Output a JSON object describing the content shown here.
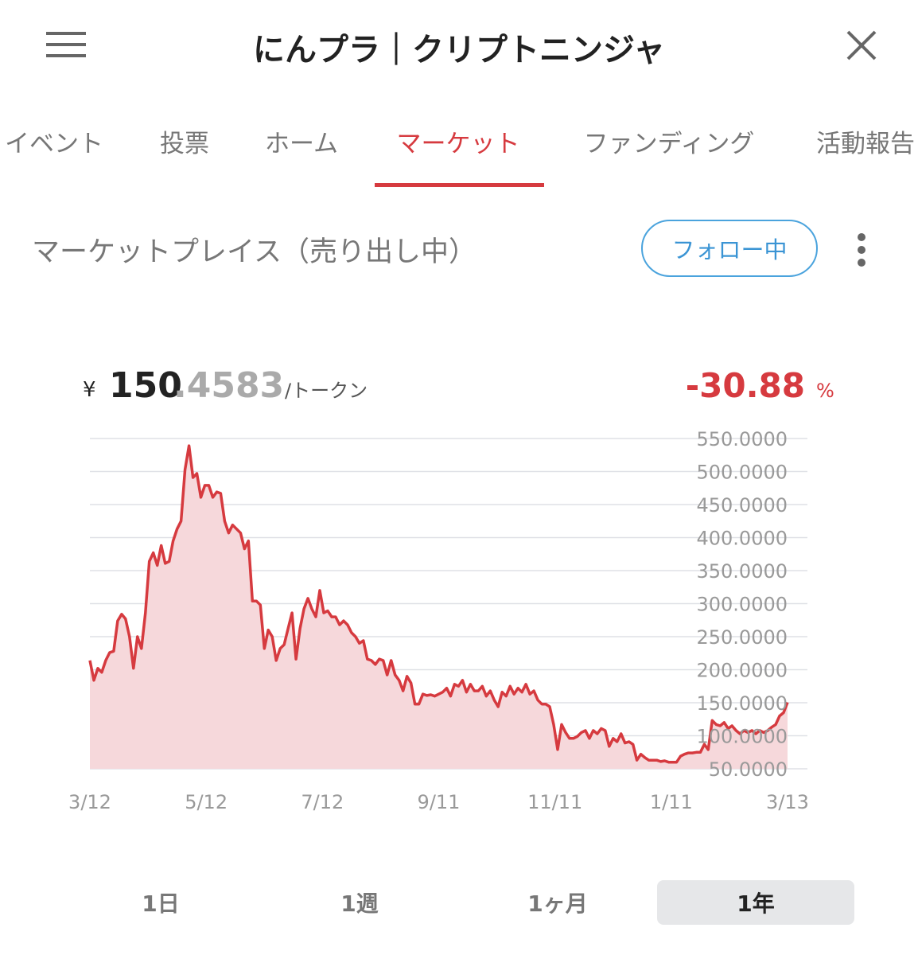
{
  "header": {
    "title": "にんプラ｜クリプトニンジャ"
  },
  "nav": {
    "items": [
      "イベント",
      "投票",
      "ホーム",
      "マーケット",
      "ファンディング",
      "活動報告"
    ],
    "active": 3
  },
  "section": {
    "title": "マーケットプレイス（売り出し中）",
    "follow_button": "フォロー中"
  },
  "price": {
    "currency": "¥",
    "integer": "150",
    "decimals": ".4583",
    "unit": "/トークン",
    "change": "-30.88",
    "change_unit": "%"
  },
  "chart_data": {
    "type": "area",
    "color": "#d63a3f",
    "fill": "#f6d8db",
    "grid": true,
    "xticks": [
      "3/12",
      "5/12",
      "7/12",
      "9/11",
      "11/11",
      "1/11",
      "3/13"
    ],
    "ylim": [
      50,
      550
    ],
    "yticks": [
      {
        "value": 550,
        "label": "550.0000"
      },
      {
        "value": 500,
        "label": "500.0000"
      },
      {
        "value": 450,
        "label": "450.0000"
      },
      {
        "value": 400,
        "label": "400.0000"
      },
      {
        "value": 350,
        "label": "350.0000"
      },
      {
        "value": 300,
        "label": "300.0000"
      },
      {
        "value": 250,
        "label": "250.0000"
      },
      {
        "value": 200,
        "label": "200.0000"
      },
      {
        "value": 150,
        "label": "150.0000"
      },
      {
        "value": 100,
        "label": "100.0000"
      },
      {
        "value": 50,
        "label": "50.0000"
      }
    ],
    "values": [
      214,
      184,
      202,
      196,
      214,
      226,
      228,
      274,
      284,
      277,
      250,
      202,
      250,
      232,
      286,
      364,
      377,
      358,
      388,
      361,
      364,
      395,
      413,
      425,
      503,
      539,
      491,
      497,
      461,
      479,
      479,
      461,
      469,
      467,
      425,
      407,
      419,
      413,
      407,
      383,
      395,
      304,
      304,
      298,
      232,
      260,
      250,
      214,
      232,
      238,
      262,
      286,
      216,
      262,
      292,
      308,
      292,
      280,
      320,
      286,
      289,
      280,
      280,
      268,
      274,
      268,
      256,
      250,
      240,
      244,
      216,
      214,
      208,
      216,
      214,
      192,
      214,
      192,
      184,
      168,
      190,
      180,
      148,
      148,
      163,
      161,
      162,
      160,
      163,
      166,
      172,
      160,
      178,
      175,
      184,
      166,
      178,
      168,
      168,
      175,
      160,
      168,
      154,
      144,
      166,
      160,
      175,
      163,
      172,
      166,
      178,
      163,
      168,
      154,
      148,
      148,
      144,
      117,
      79,
      117,
      105,
      96,
      96,
      99,
      105,
      108,
      96,
      108,
      103,
      111,
      108,
      84,
      96,
      91,
      103,
      89,
      91,
      87,
      63,
      72,
      67,
      63,
      63,
      63,
      61,
      62,
      60,
      60,
      60,
      69,
      72,
      74,
      74,
      75,
      75,
      87,
      79,
      123,
      117,
      115,
      120,
      111,
      115,
      108,
      103,
      108,
      105,
      108,
      103,
      108,
      105,
      108,
      113,
      117,
      130,
      135,
      150.4583
    ]
  },
  "period_tabs": {
    "items": [
      "1日",
      "1週",
      "1ヶ月",
      "1年"
    ],
    "selected": 3
  }
}
